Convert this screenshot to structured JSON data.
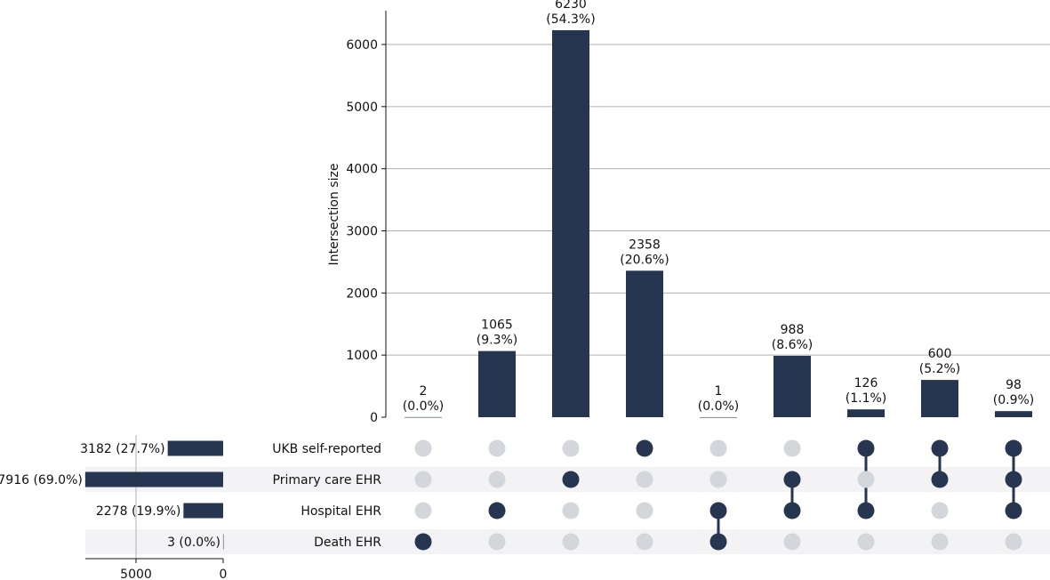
{
  "chart_data": {
    "type": "upset",
    "ylabel": "Intersection size",
    "ylim": [
      0,
      6500
    ],
    "yticks": [
      0,
      1000,
      2000,
      3000,
      4000,
      5000,
      6000
    ],
    "sets": [
      {
        "name": "UKB self-reported",
        "size": 3182,
        "label": "3182 (27.7%)"
      },
      {
        "name": "Primary care EHR",
        "size": 7916,
        "label": "7916 (69.0%)"
      },
      {
        "name": "Hospital EHR",
        "size": 2278,
        "label": "2278 (19.9%)"
      },
      {
        "name": "Death EHR",
        "size": 3,
        "label": "3 (0.0%)"
      }
    ],
    "set_size_ticks": [
      5000,
      0
    ],
    "set_size_xlim": [
      0,
      8000
    ],
    "intersections": [
      {
        "value": 2,
        "label": "2",
        "pct": "(0.0%)",
        "members": [
          3
        ]
      },
      {
        "value": 1065,
        "label": "1065",
        "pct": "(9.3%)",
        "members": [
          2
        ]
      },
      {
        "value": 6230,
        "label": "6230",
        "pct": "(54.3%)",
        "members": [
          1
        ]
      },
      {
        "value": 2358,
        "label": "2358",
        "pct": "(20.6%)",
        "members": [
          0
        ]
      },
      {
        "value": 1,
        "label": "1",
        "pct": "(0.0%)",
        "members": [
          2,
          3
        ]
      },
      {
        "value": 988,
        "label": "988",
        "pct": "(8.6%)",
        "members": [
          1,
          2
        ]
      },
      {
        "value": 126,
        "label": "126",
        "pct": "(1.1%)",
        "members": [
          0,
          2
        ]
      },
      {
        "value": 600,
        "label": "600",
        "pct": "(5.2%)",
        "members": [
          0,
          1
        ]
      },
      {
        "value": 98,
        "label": "98",
        "pct": "(0.9%)",
        "members": [
          0,
          1,
          2
        ]
      }
    ],
    "colors": {
      "bar": "#263550",
      "inactive_dot": "#d3d6db",
      "stripe": "#f3f3f5",
      "grid": "#b0b0b0"
    }
  }
}
